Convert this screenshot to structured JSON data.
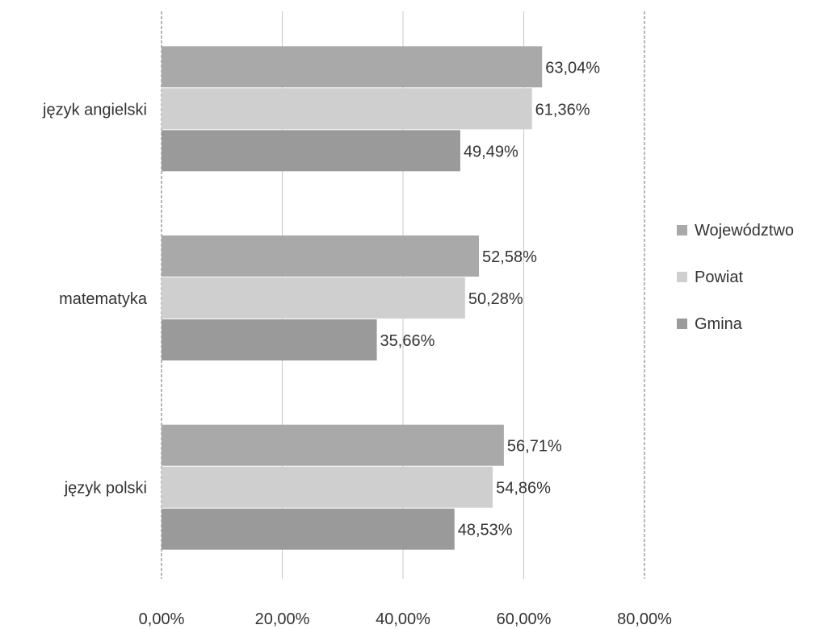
{
  "chart_data": {
    "type": "bar",
    "orientation": "horizontal",
    "categories": [
      "język polski",
      "matematyka",
      "język angielski"
    ],
    "series": [
      {
        "name": "Województwo",
        "values": [
          56.71,
          52.58,
          63.04
        ],
        "labels": [
          "56,71%",
          "52,58%",
          "63,04%"
        ],
        "color": "#a9a9a9"
      },
      {
        "name": "Powiat",
        "values": [
          54.86,
          50.28,
          61.36
        ],
        "labels": [
          "54,86%",
          "50,28%",
          "61,36%"
        ],
        "color": "#cfcfcf"
      },
      {
        "name": "Gmina",
        "values": [
          48.53,
          35.66,
          49.49
        ],
        "labels": [
          "48,53%",
          "35,66%",
          "49,49%"
        ],
        "color": "#9a9a9a"
      }
    ],
    "xlim": [
      0,
      80
    ],
    "xticks": [
      0,
      20,
      40,
      60,
      80
    ],
    "xtick_labels": [
      "0,00%",
      "20,00%",
      "40,00%",
      "60,00%",
      "80,00%"
    ],
    "title": "",
    "xlabel": "",
    "ylabel": "",
    "grid": true,
    "legend_position": "right"
  }
}
